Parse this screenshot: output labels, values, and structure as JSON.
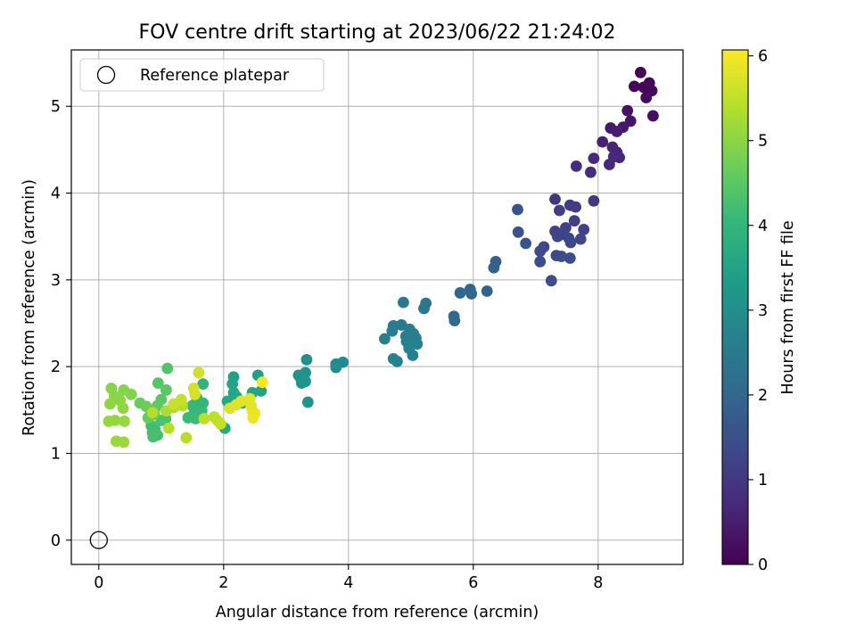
{
  "chart_data": {
    "type": "scatter",
    "title": "FOV centre drift starting at 2023/06/22 21:24:02",
    "xlabel": "Angular distance from reference (arcmin)",
    "ylabel": "Rotation from reference (arcmin)",
    "xlim": [
      -0.44,
      9.36
    ],
    "ylim": [
      -0.28,
      5.65
    ],
    "xticks": [
      0,
      2,
      4,
      6,
      8
    ],
    "yticks": [
      0,
      1,
      2,
      3,
      4,
      5
    ],
    "xtick_labels": [
      "0",
      "2",
      "4",
      "6",
      "8"
    ],
    "ytick_labels": [
      "0",
      "1",
      "2",
      "3",
      "4",
      "5"
    ],
    "grid": true,
    "legend": {
      "position": "top-left",
      "entries": [
        {
          "label": "Reference platepar",
          "marker": "open-circle"
        }
      ]
    },
    "reference_point": {
      "x": 0,
      "y": 0
    },
    "colorbar": {
      "label": "Hours from first FF file",
      "min": 0,
      "max": 6.07,
      "ticks": [
        0,
        1,
        2,
        3,
        4,
        5,
        6
      ],
      "tick_labels": [
        "0",
        "1",
        "2",
        "3",
        "4",
        "5",
        "6"
      ],
      "colormap": "viridis"
    },
    "colors": {
      "viridis": [
        "#440154",
        "#482878",
        "#3e4989",
        "#31688e",
        "#26828e",
        "#1f9e89",
        "#35b779",
        "#6ece58",
        "#b5de2b",
        "#fde725"
      ]
    },
    "points": [
      {
        "x": 8.68,
        "y": 5.39,
        "h": 0.05
      },
      {
        "x": 8.82,
        "y": 5.27,
        "h": 0.08
      },
      {
        "x": 8.58,
        "y": 5.23,
        "h": 0.1
      },
      {
        "x": 8.73,
        "y": 5.22,
        "h": 0.12
      },
      {
        "x": 8.86,
        "y": 5.18,
        "h": 0.15
      },
      {
        "x": 8.77,
        "y": 5.1,
        "h": 0.18
      },
      {
        "x": 8.88,
        "y": 4.89,
        "h": 0.22
      },
      {
        "x": 8.47,
        "y": 4.95,
        "h": 0.3
      },
      {
        "x": 8.52,
        "y": 4.83,
        "h": 0.35
      },
      {
        "x": 8.4,
        "y": 4.76,
        "h": 0.4
      },
      {
        "x": 8.2,
        "y": 4.75,
        "h": 0.45
      },
      {
        "x": 8.3,
        "y": 4.71,
        "h": 0.5
      },
      {
        "x": 8.07,
        "y": 4.59,
        "h": 0.55
      },
      {
        "x": 8.23,
        "y": 4.53,
        "h": 0.6
      },
      {
        "x": 8.3,
        "y": 4.47,
        "h": 0.63
      },
      {
        "x": 8.34,
        "y": 4.41,
        "h": 0.66
      },
      {
        "x": 8.25,
        "y": 4.42,
        "h": 0.68
      },
      {
        "x": 8.18,
        "y": 4.33,
        "h": 0.7
      },
      {
        "x": 7.93,
        "y": 4.4,
        "h": 0.72
      },
      {
        "x": 7.65,
        "y": 4.31,
        "h": 0.75
      },
      {
        "x": 7.88,
        "y": 4.24,
        "h": 0.78
      },
      {
        "x": 7.31,
        "y": 3.93,
        "h": 1.0
      },
      {
        "x": 7.93,
        "y": 3.91,
        "h": 1.05
      },
      {
        "x": 7.55,
        "y": 3.86,
        "h": 1.08
      },
      {
        "x": 7.64,
        "y": 3.84,
        "h": 1.1
      },
      {
        "x": 7.38,
        "y": 3.8,
        "h": 1.12
      },
      {
        "x": 7.62,
        "y": 3.68,
        "h": 1.15
      },
      {
        "x": 7.77,
        "y": 3.58,
        "h": 1.18
      },
      {
        "x": 7.48,
        "y": 3.6,
        "h": 1.2
      },
      {
        "x": 7.31,
        "y": 3.56,
        "h": 1.22
      },
      {
        "x": 7.4,
        "y": 3.52,
        "h": 1.24
      },
      {
        "x": 7.35,
        "y": 3.5,
        "h": 1.26
      },
      {
        "x": 7.53,
        "y": 3.48,
        "h": 1.28
      },
      {
        "x": 7.72,
        "y": 3.47,
        "h": 1.3
      },
      {
        "x": 7.56,
        "y": 3.43,
        "h": 1.32
      },
      {
        "x": 7.13,
        "y": 3.38,
        "h": 1.34
      },
      {
        "x": 7.07,
        "y": 3.33,
        "h": 1.36
      },
      {
        "x": 7.33,
        "y": 3.28,
        "h": 1.38
      },
      {
        "x": 7.41,
        "y": 3.27,
        "h": 1.4
      },
      {
        "x": 7.55,
        "y": 3.25,
        "h": 1.42
      },
      {
        "x": 7.07,
        "y": 3.21,
        "h": 1.44
      },
      {
        "x": 7.25,
        "y": 2.99,
        "h": 1.46
      },
      {
        "x": 6.71,
        "y": 3.81,
        "h": 1.55
      },
      {
        "x": 6.72,
        "y": 3.55,
        "h": 1.58
      },
      {
        "x": 6.84,
        "y": 3.42,
        "h": 1.6
      },
      {
        "x": 6.36,
        "y": 3.21,
        "h": 1.85
      },
      {
        "x": 6.33,
        "y": 3.14,
        "h": 1.88
      },
      {
        "x": 6.22,
        "y": 2.87,
        "h": 1.92
      },
      {
        "x": 5.95,
        "y": 2.89,
        "h": 1.95
      },
      {
        "x": 5.79,
        "y": 2.85,
        "h": 1.98
      },
      {
        "x": 5.97,
        "y": 2.84,
        "h": 2.0
      },
      {
        "x": 5.69,
        "y": 2.58,
        "h": 2.05
      },
      {
        "x": 5.7,
        "y": 2.53,
        "h": 2.1
      },
      {
        "x": 5.24,
        "y": 2.73,
        "h": 2.4
      },
      {
        "x": 5.21,
        "y": 2.67,
        "h": 2.42
      },
      {
        "x": 4.88,
        "y": 2.74,
        "h": 2.45
      },
      {
        "x": 4.85,
        "y": 2.48,
        "h": 2.5
      },
      {
        "x": 4.72,
        "y": 2.47,
        "h": 2.52
      },
      {
        "x": 4.98,
        "y": 2.43,
        "h": 2.55
      },
      {
        "x": 4.7,
        "y": 2.41,
        "h": 2.57
      },
      {
        "x": 5.04,
        "y": 2.38,
        "h": 2.58
      },
      {
        "x": 4.92,
        "y": 2.35,
        "h": 2.6
      },
      {
        "x": 5.08,
        "y": 2.33,
        "h": 2.62
      },
      {
        "x": 4.58,
        "y": 2.32,
        "h": 2.63
      },
      {
        "x": 4.93,
        "y": 2.29,
        "h": 2.64
      },
      {
        "x": 5.1,
        "y": 2.26,
        "h": 2.65
      },
      {
        "x": 4.97,
        "y": 2.21,
        "h": 2.66
      },
      {
        "x": 5.03,
        "y": 2.13,
        "h": 2.68
      },
      {
        "x": 4.72,
        "y": 2.09,
        "h": 2.7
      },
      {
        "x": 4.78,
        "y": 2.06,
        "h": 2.72
      },
      {
        "x": 3.91,
        "y": 2.05,
        "h": 2.9
      },
      {
        "x": 3.8,
        "y": 2.03,
        "h": 2.92
      },
      {
        "x": 3.8,
        "y": 1.99,
        "h": 2.94
      },
      {
        "x": 3.33,
        "y": 2.08,
        "h": 3.0
      },
      {
        "x": 3.31,
        "y": 1.93,
        "h": 3.05
      },
      {
        "x": 3.2,
        "y": 1.9,
        "h": 3.08
      },
      {
        "x": 3.24,
        "y": 1.86,
        "h": 3.1
      },
      {
        "x": 3.31,
        "y": 1.83,
        "h": 3.12
      },
      {
        "x": 3.25,
        "y": 1.81,
        "h": 3.14
      },
      {
        "x": 3.35,
        "y": 1.59,
        "h": 3.16
      },
      {
        "x": 2.55,
        "y": 1.9,
        "h": 3.4
      },
      {
        "x": 2.16,
        "y": 1.88,
        "h": 3.45
      },
      {
        "x": 2.14,
        "y": 1.8,
        "h": 3.48
      },
      {
        "x": 2.6,
        "y": 1.72,
        "h": 3.5
      },
      {
        "x": 2.46,
        "y": 1.7,
        "h": 3.52
      },
      {
        "x": 2.16,
        "y": 1.7,
        "h": 3.55
      },
      {
        "x": 2.21,
        "y": 1.65,
        "h": 3.58
      },
      {
        "x": 2.06,
        "y": 1.6,
        "h": 3.6
      },
      {
        "x": 2.3,
        "y": 1.58,
        "h": 3.62
      },
      {
        "x": 2.02,
        "y": 1.29,
        "h": 3.65
      },
      {
        "x": 1.67,
        "y": 1.8,
        "h": 3.95
      },
      {
        "x": 1.57,
        "y": 1.64,
        "h": 4.0
      },
      {
        "x": 1.67,
        "y": 1.58,
        "h": 4.02
      },
      {
        "x": 1.5,
        "y": 1.55,
        "h": 4.05
      },
      {
        "x": 1.65,
        "y": 1.49,
        "h": 4.08
      },
      {
        "x": 1.52,
        "y": 1.45,
        "h": 4.1
      },
      {
        "x": 1.43,
        "y": 1.41,
        "h": 4.12
      },
      {
        "x": 1.55,
        "y": 1.4,
        "h": 4.14
      },
      {
        "x": 0.84,
        "y": 1.32,
        "h": 4.2
      },
      {
        "x": 0.9,
        "y": 1.28,
        "h": 4.22
      },
      {
        "x": 0.86,
        "y": 1.24,
        "h": 4.24
      },
      {
        "x": 0.94,
        "y": 1.21,
        "h": 4.26
      },
      {
        "x": 0.87,
        "y": 1.19,
        "h": 4.28
      },
      {
        "x": 1.0,
        "y": 1.38,
        "h": 4.3
      },
      {
        "x": 1.07,
        "y": 1.4,
        "h": 4.32
      },
      {
        "x": 1.1,
        "y": 1.98,
        "h": 4.4
      },
      {
        "x": 0.95,
        "y": 1.81,
        "h": 4.45
      },
      {
        "x": 1.08,
        "y": 1.73,
        "h": 4.48
      },
      {
        "x": 1.0,
        "y": 1.62,
        "h": 4.5
      },
      {
        "x": 0.94,
        "y": 1.55,
        "h": 4.55
      },
      {
        "x": 0.83,
        "y": 1.5,
        "h": 4.58
      },
      {
        "x": 0.89,
        "y": 1.45,
        "h": 4.6
      },
      {
        "x": 0.79,
        "y": 1.41,
        "h": 4.62
      },
      {
        "x": 0.66,
        "y": 1.58,
        "h": 4.65
      },
      {
        "x": 0.76,
        "y": 1.54,
        "h": 4.68
      },
      {
        "x": 0.52,
        "y": 1.68,
        "h": 4.9
      },
      {
        "x": 0.4,
        "y": 1.73,
        "h": 4.92
      },
      {
        "x": 0.2,
        "y": 1.75,
        "h": 4.95
      },
      {
        "x": 0.25,
        "y": 1.66,
        "h": 4.98
      },
      {
        "x": 0.34,
        "y": 1.61,
        "h": 5.0
      },
      {
        "x": 0.18,
        "y": 1.57,
        "h": 5.02
      },
      {
        "x": 0.39,
        "y": 1.52,
        "h": 5.05
      },
      {
        "x": 0.26,
        "y": 1.38,
        "h": 5.07
      },
      {
        "x": 0.16,
        "y": 1.37,
        "h": 5.09
      },
      {
        "x": 0.41,
        "y": 1.37,
        "h": 5.11
      },
      {
        "x": 0.28,
        "y": 1.14,
        "h": 5.13
      },
      {
        "x": 0.4,
        "y": 1.13,
        "h": 5.15
      },
      {
        "x": 1.08,
        "y": 1.49,
        "h": 5.3
      },
      {
        "x": 1.2,
        "y": 1.53,
        "h": 5.32
      },
      {
        "x": 1.34,
        "y": 1.55,
        "h": 5.35
      },
      {
        "x": 0.86,
        "y": 1.47,
        "h": 5.38
      },
      {
        "x": 1.12,
        "y": 1.29,
        "h": 5.4
      },
      {
        "x": 1.4,
        "y": 1.18,
        "h": 5.42
      },
      {
        "x": 1.85,
        "y": 1.42,
        "h": 5.45
      },
      {
        "x": 1.69,
        "y": 1.4,
        "h": 5.48
      },
      {
        "x": 1.9,
        "y": 1.38,
        "h": 5.5
      },
      {
        "x": 1.95,
        "y": 1.34,
        "h": 5.52
      },
      {
        "x": 1.32,
        "y": 1.62,
        "h": 5.55
      },
      {
        "x": 1.2,
        "y": 1.57,
        "h": 5.57
      },
      {
        "x": 1.6,
        "y": 1.93,
        "h": 5.65
      },
      {
        "x": 1.52,
        "y": 1.75,
        "h": 5.68
      },
      {
        "x": 1.54,
        "y": 1.68,
        "h": 5.7
      },
      {
        "x": 2.1,
        "y": 1.52,
        "h": 5.75
      },
      {
        "x": 2.2,
        "y": 1.56,
        "h": 5.78
      },
      {
        "x": 2.28,
        "y": 1.6,
        "h": 5.8
      },
      {
        "x": 2.42,
        "y": 1.63,
        "h": 5.82
      },
      {
        "x": 2.44,
        "y": 1.55,
        "h": 5.84
      },
      {
        "x": 2.46,
        "y": 1.49,
        "h": 5.86
      },
      {
        "x": 2.5,
        "y": 1.46,
        "h": 5.88
      },
      {
        "x": 2.47,
        "y": 1.41,
        "h": 5.9
      },
      {
        "x": 2.62,
        "y": 1.82,
        "h": 6.0
      }
    ]
  }
}
